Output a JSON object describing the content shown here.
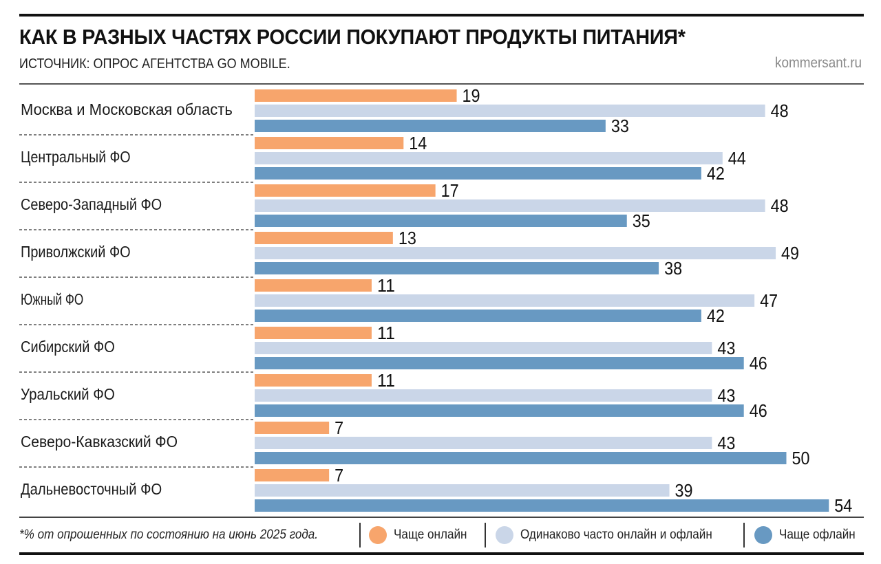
{
  "header": {
    "title": "КАК В РАЗНЫХ ЧАСТЯХ РОССИИ ПОКУПАЮТ ПРОДУКТЫ ПИТАНИЯ*",
    "subtitle": "ИСТОЧНИК: ОПРОС АГЕНТСТВА GO MOBILE.",
    "source": "kommersant.ru"
  },
  "footer": {
    "footnote": "*% от опрошенных по состоянию на июнь 2025 года."
  },
  "chart_data": {
    "type": "bar",
    "orientation": "horizontal",
    "title": "КАК В РАЗНЫХ ЧАСТЯХ РОССИИ ПОКУПАЮТ ПРОДУКТЫ ПИТАНИЯ*",
    "xlabel": "",
    "ylabel": "",
    "xlim": [
      0,
      54
    ],
    "grid": false,
    "legend_position": "bottom",
    "categories": [
      "Москва и Московская область",
      "Центральный ФО",
      "Северо-Западный ФО",
      "Приволжский ФО",
      "Южный ФО",
      "Сибирский ФО",
      "Уральский ФО",
      "Северо-Кавказский ФО",
      "Дальневосточный ФО"
    ],
    "series": [
      {
        "name": "Чаще онлайн",
        "color": "#f7a56c",
        "values": [
          19,
          14,
          17,
          13,
          11,
          11,
          11,
          7,
          7
        ]
      },
      {
        "name": "Одинаково часто онлайн и офлайн",
        "color": "#cad6e8",
        "values": [
          48,
          44,
          48,
          49,
          47,
          43,
          43,
          43,
          39
        ]
      },
      {
        "name": "Чаще офлайн",
        "color": "#6899c2",
        "values": [
          33,
          42,
          35,
          38,
          42,
          46,
          46,
          50,
          54
        ]
      }
    ]
  }
}
